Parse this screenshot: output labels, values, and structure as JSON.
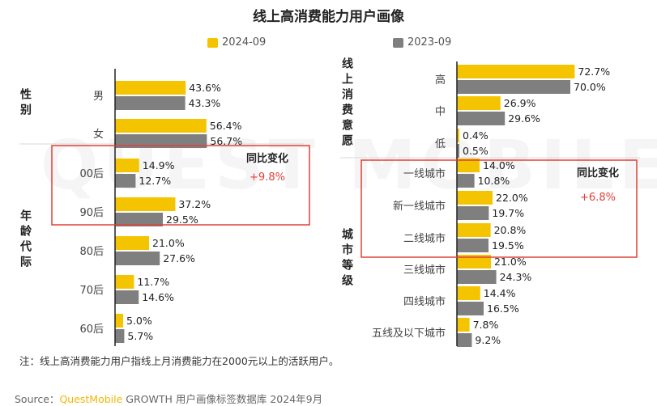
{
  "title": "线上高消费能力用户画像",
  "legend": [
    {
      "label": "2024-09",
      "color": "#f5c400"
    },
    {
      "label": "2023-09",
      "color": "#7f7f7f"
    }
  ],
  "watermark": "QUEST MOBILE",
  "chart_data": [
    {
      "type": "bar",
      "orientation": "horizontal",
      "panel": "left",
      "groups": [
        {
          "label": "性别",
          "categories": [
            "男",
            "女"
          ]
        },
        {
          "label": "年龄代际",
          "categories": [
            "00后",
            "90后",
            "80后",
            "70后",
            "60后"
          ]
        }
      ],
      "categories": [
        "男",
        "女",
        "00后",
        "90后",
        "80后",
        "70后",
        "60后"
      ],
      "series": [
        {
          "name": "2024-09",
          "color": "#f5c400",
          "values": [
            43.6,
            56.4,
            14.9,
            37.2,
            21.0,
            11.7,
            5.0
          ],
          "labels": [
            "43.6%",
            "56.4%",
            "14.9%",
            "37.2%",
            "21.0%",
            "11.7%",
            "5.0%"
          ]
        },
        {
          "name": "2023-09",
          "color": "#7f7f7f",
          "values": [
            43.3,
            56.7,
            12.7,
            29.5,
            27.6,
            14.6,
            5.7
          ],
          "labels": [
            "43.3%",
            "56.7%",
            "12.7%",
            "29.5%",
            "27.6%",
            "14.6%",
            "5.7%"
          ]
        }
      ],
      "xlim": [
        0,
        100
      ],
      "highlight": {
        "categories": [
          "00后",
          "90后"
        ],
        "label": "同比变化",
        "value": "+9.8%"
      }
    },
    {
      "type": "bar",
      "orientation": "horizontal",
      "panel": "right",
      "groups": [
        {
          "label": "线上消费意愿",
          "categories": [
            "高",
            "中",
            "低"
          ]
        },
        {
          "label": "城市等级",
          "categories": [
            "一线城市",
            "新一线城市",
            "二线城市",
            "三线城市",
            "四线城市",
            "五线及以下城市"
          ]
        }
      ],
      "categories": [
        "高",
        "中",
        "低",
        "一线城市",
        "新一线城市",
        "二线城市",
        "三线城市",
        "四线城市",
        "五线及以下城市"
      ],
      "series": [
        {
          "name": "2024-09",
          "color": "#f5c400",
          "values": [
            72.7,
            26.9,
            0.4,
            14.0,
            22.0,
            20.8,
            21.0,
            14.4,
            7.8
          ],
          "labels": [
            "72.7%",
            "26.9%",
            "0.4%",
            "14.0%",
            "22.0%",
            "20.8%",
            "21.0%",
            "14.4%",
            "7.8%"
          ]
        },
        {
          "name": "2023-09",
          "color": "#7f7f7f",
          "values": [
            70.0,
            29.6,
            0.5,
            10.8,
            19.7,
            19.5,
            24.3,
            16.5,
            9.2
          ],
          "labels": [
            "70.0%",
            "29.6%",
            "0.5%",
            "10.8%",
            "19.7%",
            "19.5%",
            "24.3%",
            "16.5%",
            "9.2%"
          ]
        }
      ],
      "xlim": [
        0,
        100
      ],
      "highlight": {
        "categories": [
          "一线城市",
          "新一线城市",
          "二线城市"
        ],
        "label": "同比变化",
        "value": "+6.8%"
      }
    }
  ],
  "note": "注：线上高消费能力用户指线上月消费能力在2000元以上的活跃用户。",
  "source": {
    "prefix": "Source：",
    "brand": "QuestMobile",
    "rest": " GROWTH 用户画像标签数据库 2024年9月"
  }
}
